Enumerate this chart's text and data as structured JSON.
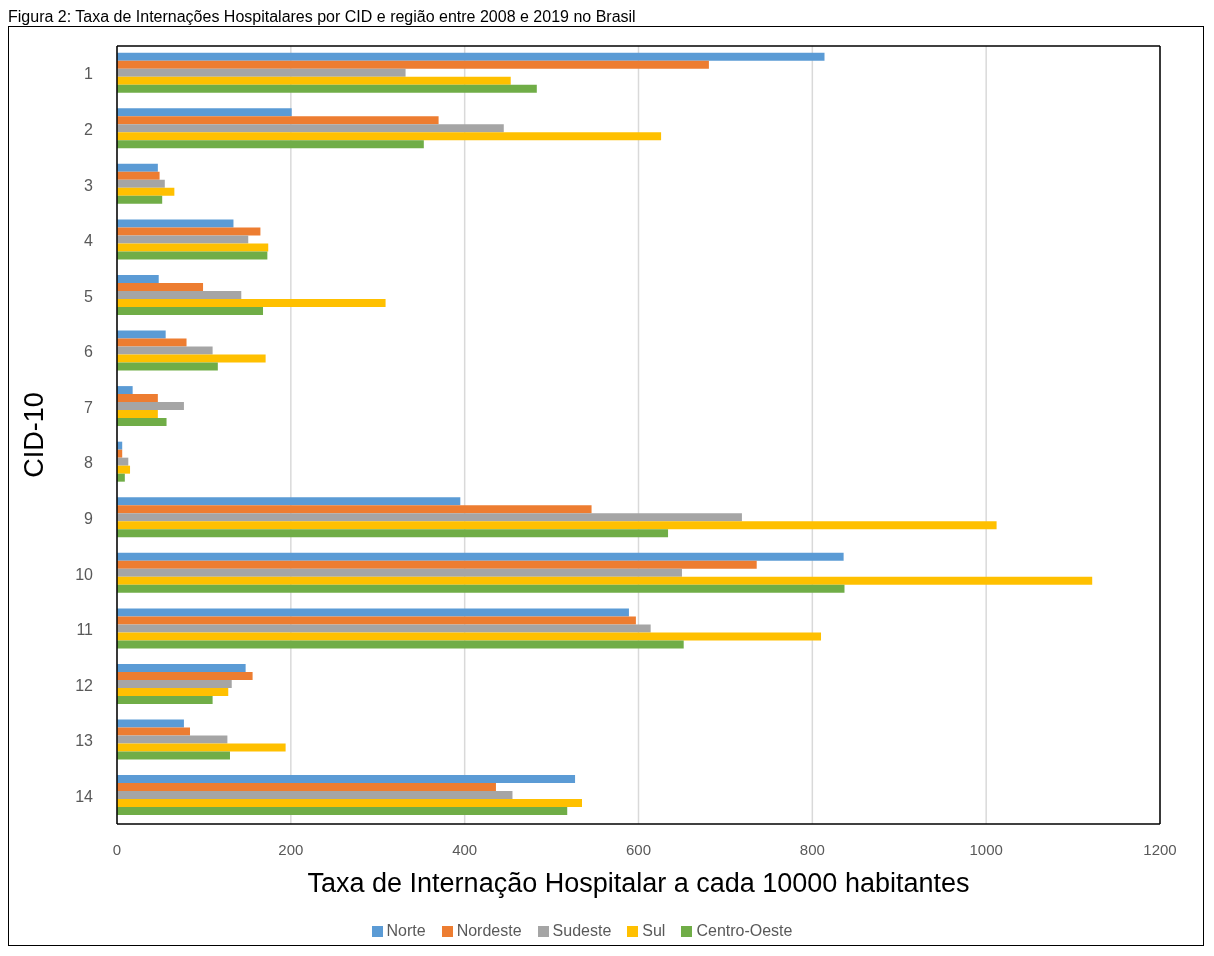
{
  "chart_data": {
    "type": "bar",
    "orientation": "horizontal",
    "title": "Figura 2: Taxa de Internações Hospitalares por CID e região entre 2008 e 2019 no Brasil",
    "xlabel": "Taxa de Internação Hospitalar a cada 10000 habitantes",
    "ylabel": "CID-10",
    "categories": [
      "1",
      "2",
      "3",
      "4",
      "5",
      "6",
      "7",
      "8",
      "9",
      "10",
      "11",
      "12",
      "13",
      "14"
    ],
    "series": [
      {
        "name": "Norte",
        "color": "#5b9bd5",
        "values": [
          814,
          201,
          47,
          134,
          48,
          56,
          18,
          6,
          395,
          836,
          589,
          148,
          77,
          527
        ]
      },
      {
        "name": "Nordeste",
        "color": "#ed7d31",
        "values": [
          681,
          370,
          49,
          165,
          99,
          80,
          47,
          6,
          546,
          736,
          597,
          156,
          84,
          436
        ]
      },
      {
        "name": "Sudeste",
        "color": "#a5a5a5",
        "values": [
          332,
          445,
          55,
          151,
          143,
          110,
          77,
          13,
          719,
          650,
          614,
          132,
          127,
          455
        ]
      },
      {
        "name": "Sul",
        "color": "#ffc000",
        "values": [
          453,
          626,
          66,
          174,
          309,
          171,
          47,
          15,
          1012,
          1122,
          810,
          128,
          194,
          535
        ]
      },
      {
        "name": "Centro-Oeste",
        "color": "#70ad47",
        "values": [
          483,
          353,
          52,
          173,
          168,
          116,
          57,
          9,
          634,
          837,
          652,
          110,
          130,
          518
        ]
      }
    ],
    "xlim": [
      0,
      1200
    ],
    "xticks": [
      0,
      200,
      400,
      600,
      800,
      1000,
      1200
    ],
    "grid": "x",
    "legend": "bottom"
  }
}
